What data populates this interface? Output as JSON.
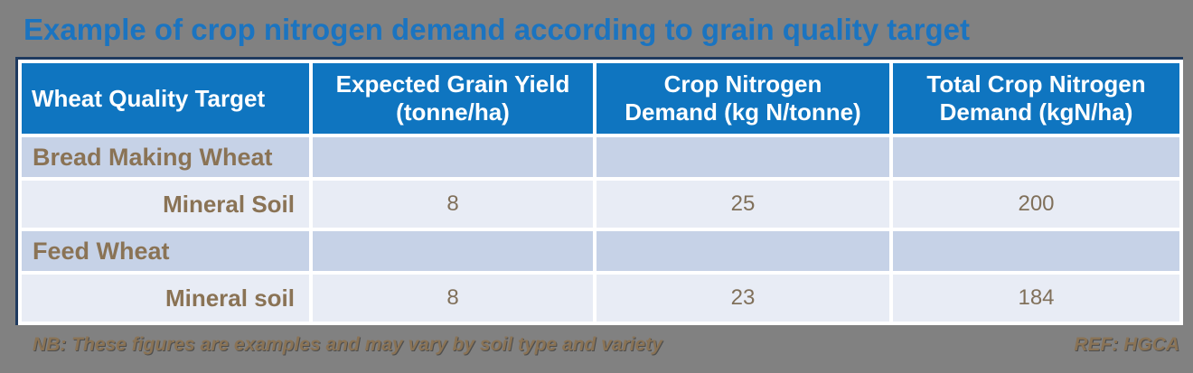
{
  "colors": {
    "page_bg": "#818181",
    "title_color": "#1B74C0",
    "header_bg": "#0F75C0",
    "header_text": "#FFFFFF",
    "category_bg": "#C6D2E7",
    "detail_bg": "#E8ECF5",
    "label_color": "#8A7355",
    "value_color": "#80705A",
    "frame_border": "#1E3A5F",
    "grid_color": "#FFFFFF"
  },
  "page": {
    "title": "Example of crop nitrogen demand according to grain quality target"
  },
  "table": {
    "columns": [
      "Wheat Quality Target",
      "Expected Grain Yield\n(tonne/ha)",
      "Crop Nitrogen\nDemand (kg N/tonne)",
      "Total Crop Nitrogen\nDemand (kgN/ha)"
    ],
    "rows": [
      {
        "type": "category",
        "label": "Bread Making Wheat",
        "values": [
          "",
          "",
          ""
        ]
      },
      {
        "type": "detail",
        "label": "Mineral Soil",
        "values": [
          "8",
          "25",
          "200"
        ]
      },
      {
        "type": "category",
        "label": "Feed Wheat",
        "values": [
          "",
          "",
          ""
        ]
      },
      {
        "type": "detail",
        "label": "Mineral soil",
        "values": [
          "8",
          "23",
          "184"
        ]
      }
    ]
  },
  "footer": {
    "note": "NB: These figures are examples and may vary by soil type and variety",
    "ref": "REF: HGCA"
  }
}
